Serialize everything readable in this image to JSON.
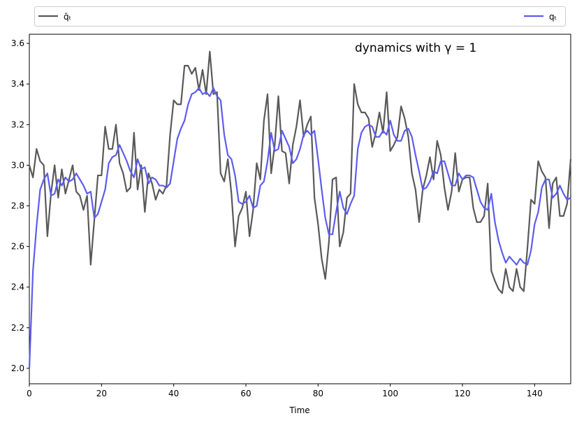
{
  "chart_data": {
    "type": "line",
    "annotation": "dynamics with γ = 1",
    "xlabel": "Time",
    "x": [
      0,
      1,
      2,
      3,
      4,
      5,
      6,
      7,
      8,
      9,
      10,
      11,
      12,
      13,
      14,
      15,
      16,
      17,
      18,
      19,
      20,
      21,
      22,
      23,
      24,
      25,
      26,
      27,
      28,
      29,
      30,
      31,
      32,
      33,
      34,
      35,
      36,
      37,
      38,
      39,
      40,
      41,
      42,
      43,
      44,
      45,
      46,
      47,
      48,
      49,
      50,
      51,
      52,
      53,
      54,
      55,
      56,
      57,
      58,
      59,
      60,
      61,
      62,
      63,
      64,
      65,
      66,
      67,
      68,
      69,
      70,
      71,
      72,
      73,
      74,
      75,
      76,
      77,
      78,
      79,
      80,
      81,
      82,
      83,
      84,
      85,
      86,
      87,
      88,
      89,
      90,
      91,
      92,
      93,
      94,
      95,
      96,
      97,
      98,
      99,
      100,
      101,
      102,
      103,
      104,
      105,
      106,
      107,
      108,
      109,
      110,
      111,
      112,
      113,
      114,
      115,
      116,
      117,
      118,
      119,
      120,
      121,
      122,
      123,
      124,
      125,
      126,
      127,
      128,
      129,
      130,
      131,
      132,
      133,
      134,
      135,
      136,
      137,
      138,
      139,
      140,
      141,
      142,
      143,
      144,
      145,
      146,
      147,
      148,
      149,
      150
    ],
    "series": [
      {
        "name": "q̄ₜ",
        "color": "#595959",
        "values": [
          3.0,
          2.94,
          3.08,
          3.02,
          3.0,
          2.65,
          2.86,
          3.0,
          2.84,
          2.98,
          2.86,
          2.93,
          3.0,
          2.87,
          2.85,
          2.78,
          2.85,
          2.51,
          2.73,
          2.95,
          2.95,
          3.19,
          3.08,
          3.08,
          3.2,
          3.01,
          2.96,
          2.87,
          2.89,
          3.16,
          2.88,
          3.0,
          2.77,
          2.96,
          2.91,
          2.83,
          2.88,
          2.86,
          2.9,
          3.15,
          3.32,
          3.3,
          3.3,
          3.49,
          3.49,
          3.45,
          3.48,
          3.37,
          3.47,
          3.35,
          3.56,
          3.35,
          3.36,
          2.96,
          2.92,
          3.03,
          2.86,
          2.6,
          2.75,
          2.79,
          2.87,
          2.65,
          2.78,
          3.01,
          2.93,
          3.22,
          3.35,
          2.96,
          3.1,
          3.34,
          3.07,
          3.06,
          2.91,
          3.1,
          3.19,
          3.32,
          3.14,
          3.2,
          3.24,
          2.84,
          2.71,
          2.54,
          2.44,
          2.62,
          2.93,
          2.94,
          2.6,
          2.67,
          2.84,
          2.86,
          3.4,
          3.3,
          3.26,
          3.26,
          3.23,
          3.09,
          3.16,
          3.26,
          3.16,
          3.36,
          3.07,
          3.1,
          3.14,
          3.29,
          3.23,
          3.14,
          2.96,
          2.88,
          2.72,
          2.88,
          2.95,
          3.04,
          2.93,
          3.12,
          3.05,
          2.89,
          2.78,
          2.87,
          3.06,
          2.87,
          2.93,
          2.94,
          2.94,
          2.79,
          2.72,
          2.72,
          2.75,
          2.91,
          2.48,
          2.43,
          2.39,
          2.37,
          2.49,
          2.4,
          2.38,
          2.49,
          2.4,
          2.38,
          2.59,
          2.83,
          2.81,
          3.02,
          2.97,
          2.94,
          2.69,
          2.91,
          2.94,
          2.75,
          2.75,
          2.81,
          3.03
        ]
      },
      {
        "name": "qₜ",
        "color": "#5c5cf0",
        "values": [
          2.0,
          2.48,
          2.7,
          2.88,
          2.93,
          2.96,
          2.85,
          2.86,
          2.93,
          2.9,
          2.94,
          2.92,
          2.93,
          2.96,
          2.93,
          2.9,
          2.86,
          2.87,
          2.74,
          2.76,
          2.82,
          2.88,
          3.01,
          3.04,
          3.05,
          3.1,
          3.06,
          3.02,
          2.97,
          2.94,
          3.03,
          2.98,
          2.99,
          2.91,
          2.94,
          2.93,
          2.9,
          2.9,
          2.89,
          2.91,
          3.02,
          3.13,
          3.18,
          3.22,
          3.3,
          3.35,
          3.36,
          3.38,
          3.35,
          3.36,
          3.34,
          3.38,
          3.34,
          3.32,
          3.15,
          3.05,
          3.03,
          2.95,
          2.82,
          2.81,
          2.82,
          2.85,
          2.79,
          2.8,
          2.9,
          2.92,
          3.02,
          3.16,
          3.07,
          3.08,
          3.17,
          3.13,
          3.09,
          3.01,
          3.03,
          3.08,
          3.15,
          3.17,
          3.15,
          3.17,
          3.03,
          2.88,
          2.74,
          2.66,
          2.66,
          2.77,
          2.87,
          2.79,
          2.76,
          2.81,
          2.85,
          3.08,
          3.16,
          3.19,
          3.2,
          3.19,
          3.14,
          3.14,
          3.17,
          3.15,
          3.22,
          3.15,
          3.12,
          3.12,
          3.17,
          3.18,
          3.14,
          3.05,
          2.97,
          2.88,
          2.89,
          2.92,
          2.97,
          2.96,
          3.02,
          3.02,
          2.96,
          2.9,
          2.9,
          2.96,
          2.93,
          2.95,
          2.95,
          2.94,
          2.88,
          2.82,
          2.79,
          2.78,
          2.86,
          2.72,
          2.63,
          2.57,
          2.52,
          2.55,
          2.53,
          2.51,
          2.54,
          2.52,
          2.51,
          2.58,
          2.71,
          2.77,
          2.89,
          2.93,
          2.93,
          2.84,
          2.86,
          2.9,
          2.86,
          2.83,
          2.84
        ]
      }
    ],
    "xlim": [
      0,
      150
    ],
    "xticks": [
      0,
      20,
      40,
      60,
      80,
      100,
      120,
      140
    ],
    "ylim": [
      1.924,
      3.645
    ],
    "yticks": [
      {
        "value": 2,
        "label": "2.0"
      },
      2.2,
      2.4,
      2.6,
      2.8,
      {
        "value": 3,
        "label": "3.0"
      },
      3.2,
      3.4,
      3.6
    ]
  }
}
